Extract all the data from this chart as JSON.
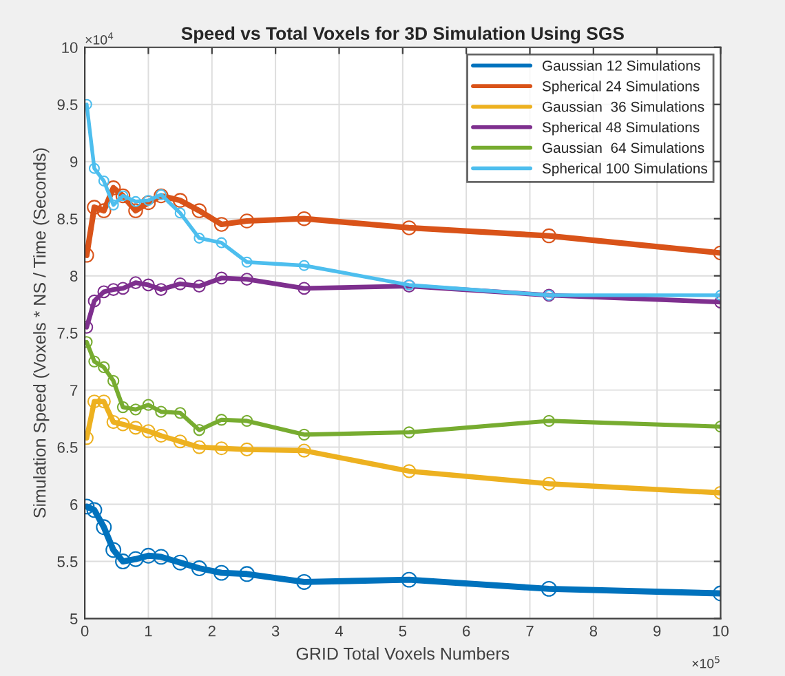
{
  "chart_data": {
    "type": "line",
    "title": "Speed vs Total Voxels for 3D Simulation Using SGS",
    "xlabel": "GRID Total Voxels Numbers",
    "ylabel": "Simulation Speed (Voxels * NS / Time (Seconds)",
    "x": [
      0.03,
      0.15,
      0.3,
      0.45,
      0.6,
      0.8,
      1.0,
      1.2,
      1.5,
      1.8,
      2.15,
      2.55,
      3.45,
      5.1,
      7.3,
      10
    ],
    "series": [
      {
        "name": "Gaussian 12 Simulations",
        "color": "#0072bd",
        "values": [
          5.98,
          5.95,
          5.8,
          5.6,
          5.5,
          5.52,
          5.55,
          5.54,
          5.49,
          5.44,
          5.4,
          5.39,
          5.32,
          5.34,
          5.26,
          5.22
        ]
      },
      {
        "name": "Spherical 24 Simulations",
        "color": "#d95319",
        "values": [
          8.18,
          8.6,
          8.57,
          8.77,
          8.7,
          8.57,
          8.64,
          8.7,
          8.66,
          8.57,
          8.45,
          8.48,
          8.5,
          8.42,
          8.35,
          8.2
        ]
      },
      {
        "name": "Gaussian  36 Simulations",
        "color": "#edb120",
        "values": [
          6.58,
          6.9,
          6.9,
          6.72,
          6.7,
          6.67,
          6.64,
          6.6,
          6.55,
          6.5,
          6.49,
          6.48,
          6.47,
          6.29,
          6.18,
          6.1
        ]
      },
      {
        "name": "Spherical 48 Simulations",
        "color": "#7e2f8e",
        "values": [
          7.55,
          7.78,
          7.86,
          7.88,
          7.89,
          7.94,
          7.92,
          7.88,
          7.93,
          7.91,
          7.98,
          7.97,
          7.89,
          7.91,
          7.83,
          7.77
        ]
      },
      {
        "name": "Gaussian  64 Simulations",
        "color": "#77ac30",
        "values": [
          7.42,
          7.25,
          7.2,
          7.08,
          6.85,
          6.83,
          6.87,
          6.81,
          6.8,
          6.65,
          6.74,
          6.73,
          6.61,
          6.63,
          6.73,
          6.68
        ]
      },
      {
        "name": "Spherical 100 Simulations",
        "color": "#4dbeee",
        "values": [
          9.5,
          8.94,
          8.83,
          8.62,
          8.7,
          8.65,
          8.66,
          8.71,
          8.55,
          8.33,
          8.29,
          8.12,
          8.09,
          7.92,
          7.83,
          7.83
        ]
      }
    ],
    "xlim": [
      0,
      10
    ],
    "ylim": [
      5,
      10
    ],
    "xticks": [
      0,
      1,
      2,
      3,
      4,
      5,
      6,
      7,
      8,
      9,
      10
    ],
    "yticks": [
      5,
      5.5,
      6,
      6.5,
      7,
      7.5,
      8,
      8.5,
      9,
      9.5,
      10
    ],
    "annotations": [
      "×10$^{4}$",
      "×10$^{5}$"
    ],
    "grid": true,
    "legend": "top right",
    "marker": "circle",
    "line_style": "solid"
  }
}
